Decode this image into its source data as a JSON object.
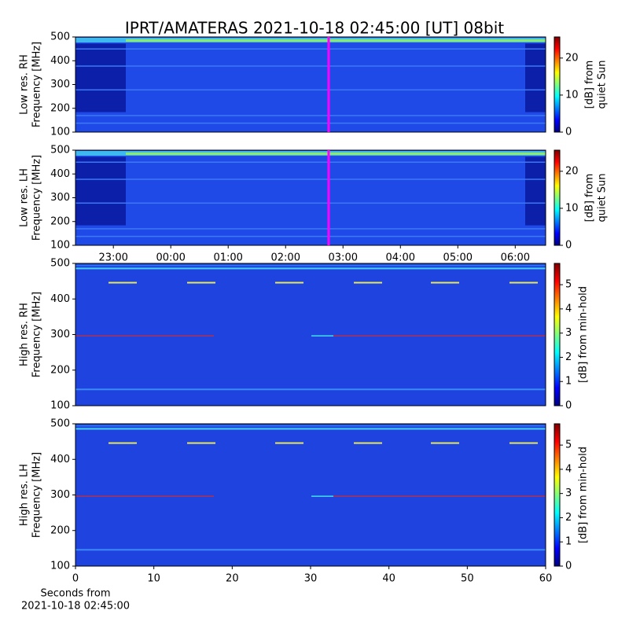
{
  "title": "IPRT/AMATERAS 2021-10-18 02:45:00 [UT]   08bit",
  "chart_data": [
    {
      "type": "heatmap",
      "ylabel": [
        "Low res. RH",
        "Frequency [MHz]"
      ],
      "ylim": [
        100,
        500
      ],
      "yticks": [
        100,
        200,
        300,
        400,
        500
      ],
      "xlim": [
        22.34,
        30.53
      ],
      "cursor": 26.75,
      "cursor_color": "#ff00ff",
      "colorbar_label": [
        "[dB] from",
        "quiet Sun"
      ],
      "clim": [
        0,
        25.7
      ],
      "cticks": [
        0,
        10,
        20
      ]
    },
    {
      "type": "heatmap",
      "ylabel": [
        "Low res. LH",
        "Frequency [MHz]"
      ],
      "ylim": [
        100,
        500
      ],
      "yticks": [
        100,
        200,
        300,
        400,
        500
      ],
      "xlim": [
        22.34,
        30.53
      ],
      "cursor": 26.75,
      "cursor_color": "#ff00ff",
      "xticks": [
        {
          "value": 23,
          "label": "23:00"
        },
        {
          "value": 24,
          "label": "00:00"
        },
        {
          "value": 25,
          "label": "01:00"
        },
        {
          "value": 26,
          "label": "02:00"
        },
        {
          "value": 27,
          "label": "03:00"
        },
        {
          "value": 28,
          "label": "04:00"
        },
        {
          "value": 29,
          "label": "05:00"
        },
        {
          "value": 30,
          "label": "06:00"
        }
      ],
      "colorbar_label": [
        "[dB] from",
        "quiet Sun"
      ],
      "clim": [
        0,
        25.7
      ],
      "cticks": [
        0,
        10,
        20
      ]
    },
    {
      "type": "heatmap",
      "ylabel": [
        "High res. RH",
        "Frequency [MHz]"
      ],
      "ylim": [
        100,
        500
      ],
      "yticks": [
        100,
        200,
        300,
        400,
        500
      ],
      "xlim": [
        0,
        60
      ],
      "colorbar_label": [
        "[dB] from min-hold"
      ],
      "clim": [
        0,
        5.88
      ],
      "cticks": [
        0,
        1,
        2,
        3,
        4,
        5
      ]
    },
    {
      "type": "heatmap",
      "ylabel": [
        "High res. LH",
        "Frequency [MHz]"
      ],
      "ylim": [
        100,
        500
      ],
      "yticks": [
        100,
        200,
        300,
        400,
        500
      ],
      "xlim": [
        0,
        60
      ],
      "xticks": [
        0,
        10,
        20,
        30,
        40,
        50,
        60
      ],
      "xlabel": [
        "Seconds from",
        "2021-10-18 02:45:00"
      ],
      "colorbar_label": [
        "[dB] from min-hold"
      ],
      "clim": [
        0,
        5.88
      ],
      "cticks": [
        0,
        1,
        2,
        3,
        4,
        5
      ]
    }
  ]
}
